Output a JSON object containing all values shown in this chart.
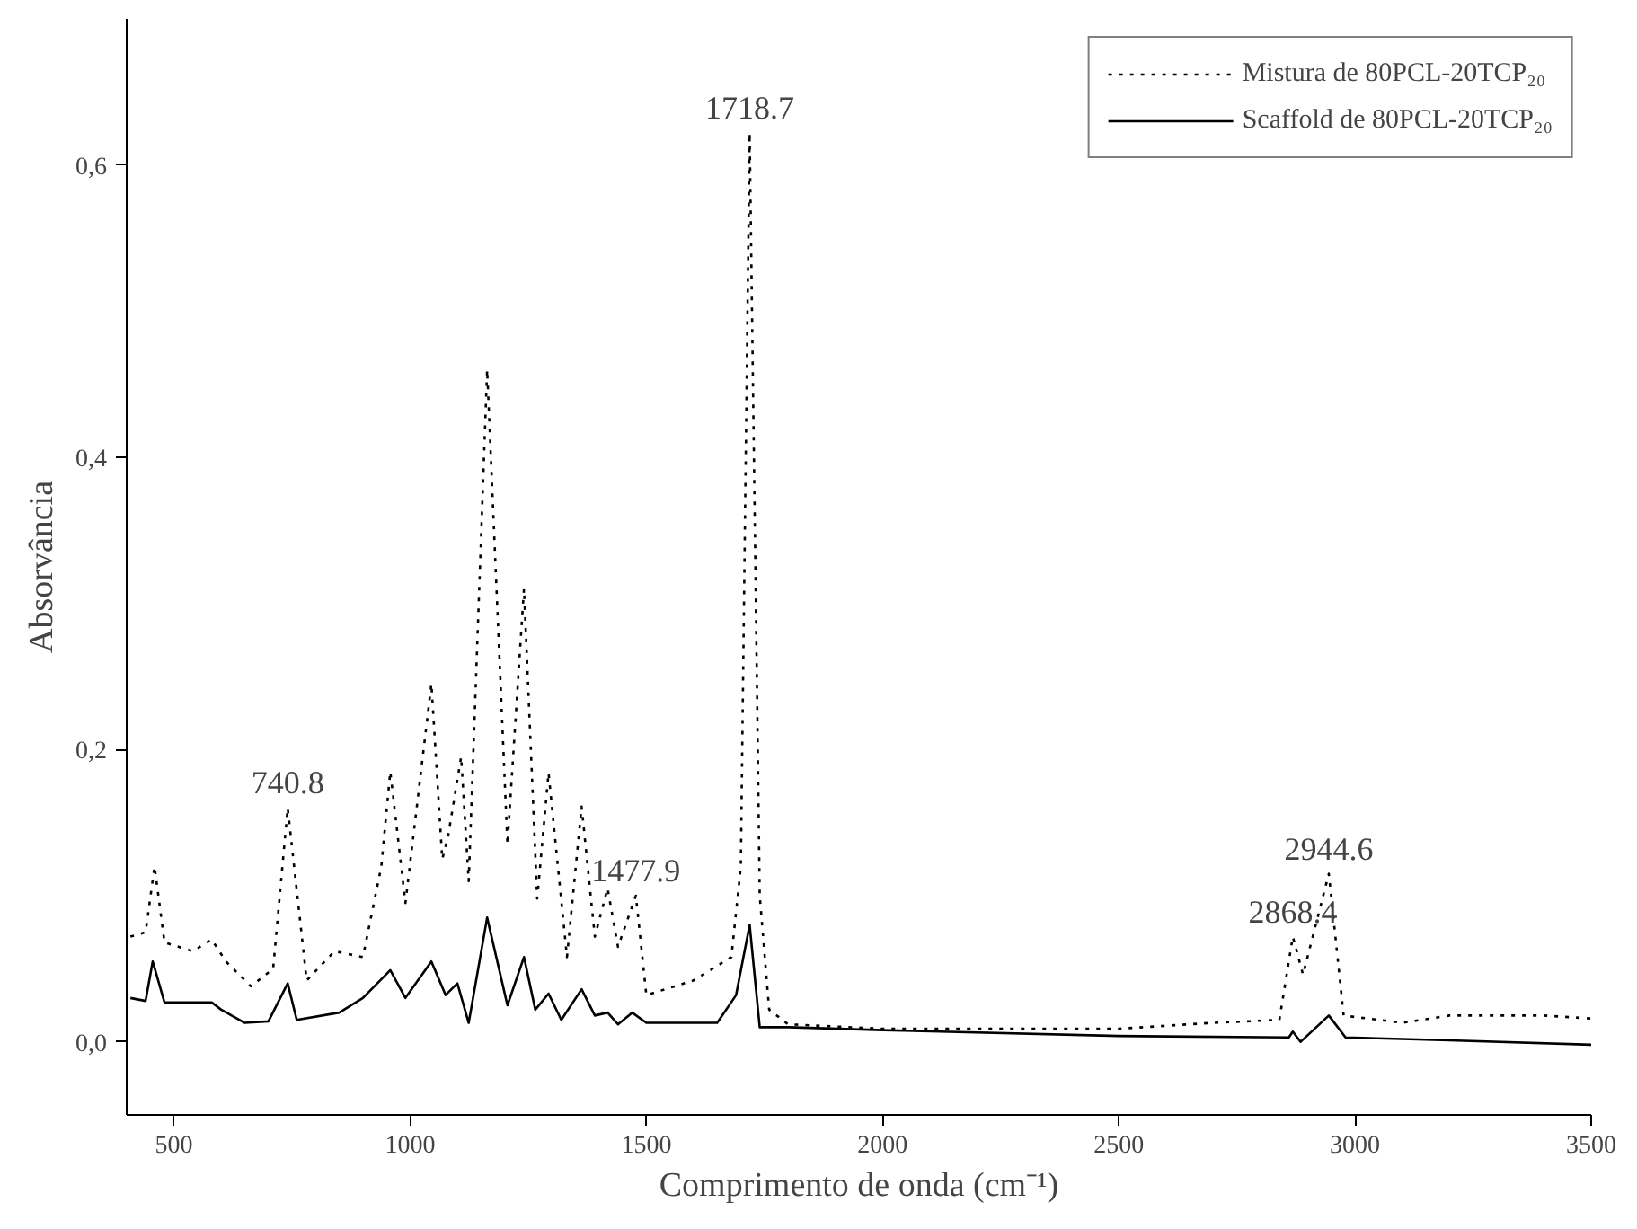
{
  "chart_data": {
    "type": "line",
    "xlabel": "Comprimento de onda (cm⁻¹)",
    "ylabel": "Absorvância",
    "xlim": [
      400,
      3500
    ],
    "xticks": [
      500,
      1000,
      1500,
      2000,
      2500,
      3000,
      3500
    ],
    "ylim": [
      -0.05,
      0.7
    ],
    "yticks": [
      {
        "value": 0,
        "label": "0,0"
      },
      {
        "value": 0.2,
        "label": "0,2"
      },
      {
        "value": 0.4,
        "label": "0,4"
      },
      {
        "value": 0.6,
        "label": "0,6"
      }
    ],
    "grid": false,
    "legend": "top right",
    "marker": "none",
    "series": [
      {
        "name": "Mistura de 80PCL-20TCP₂₀",
        "color": "#000000",
        "line_style": "dotted",
        "x": [
          408,
          440,
          459,
          480,
          540,
          580,
          610,
          663,
          710,
          740.8,
          781,
          840,
          900,
          939,
          958,
          990,
          1045,
          1068,
          1080,
          1108,
          1124,
          1163,
          1206,
          1241,
          1269,
          1293,
          1332,
          1363,
          1391,
          1418,
          1440,
          1477.9,
          1500,
          1600,
          1680,
          1700,
          1718.7,
          1740,
          1760,
          1800,
          2000,
          2500,
          2700,
          2840,
          2868.4,
          2890,
          2944.6,
          2976,
          3100,
          3200,
          3400,
          3500
        ],
        "values": [
          0.072,
          0.075,
          0.12,
          0.068,
          0.062,
          0.07,
          0.055,
          0.038,
          0.05,
          0.16,
          0.042,
          0.062,
          0.058,
          0.12,
          0.185,
          0.095,
          0.245,
          0.125,
          0.14,
          0.195,
          0.11,
          0.46,
          0.135,
          0.31,
          0.098,
          0.184,
          0.058,
          0.161,
          0.072,
          0.105,
          0.065,
          0.1,
          0.032,
          0.042,
          0.058,
          0.12,
          0.622,
          0.1,
          0.022,
          0.012,
          0.009,
          0.009,
          0.013,
          0.015,
          0.072,
          0.046,
          0.115,
          0.018,
          0.013,
          0.018,
          0.018,
          0.016
        ]
      },
      {
        "name": "Scaffold de 80PCL-20TCP₂₀",
        "color": "#000000",
        "line_style": "solid",
        "x": [
          408,
          440,
          455,
          480,
          580,
          600,
          650,
          700,
          740.8,
          760,
          850,
          900,
          958,
          990,
          1045,
          1075,
          1100,
          1124,
          1163,
          1206,
          1241,
          1265,
          1293,
          1320,
          1363,
          1391,
          1418,
          1440,
          1470,
          1500,
          1650,
          1690,
          1718.7,
          1740,
          1800,
          2000,
          2500,
          2860,
          2868.4,
          2885,
          2944.6,
          2980,
          3200,
          3500
        ],
        "values": [
          0.03,
          0.028,
          0.055,
          0.027,
          0.027,
          0.022,
          0.013,
          0.014,
          0.04,
          0.015,
          0.02,
          0.03,
          0.049,
          0.03,
          0.055,
          0.032,
          0.04,
          0.013,
          0.085,
          0.025,
          0.058,
          0.022,
          0.033,
          0.015,
          0.036,
          0.018,
          0.02,
          0.012,
          0.02,
          0.013,
          0.013,
          0.032,
          0.08,
          0.01,
          0.01,
          0.008,
          0.004,
          0.003,
          0.007,
          0.0,
          0.018,
          0.003,
          0.001,
          -0.002
        ]
      }
    ],
    "annotations": [
      {
        "text": "740.8",
        "x": 740.8,
        "y": 0.16
      },
      {
        "text": "1477.9",
        "x": 1477.9,
        "y": 0.1
      },
      {
        "text": "1718.7",
        "x": 1718.7,
        "y": 0.622
      },
      {
        "text": "2868.4",
        "x": 2868.4,
        "y": 0.072
      },
      {
        "text": "2944.6",
        "x": 2944.6,
        "y": 0.115
      }
    ]
  }
}
